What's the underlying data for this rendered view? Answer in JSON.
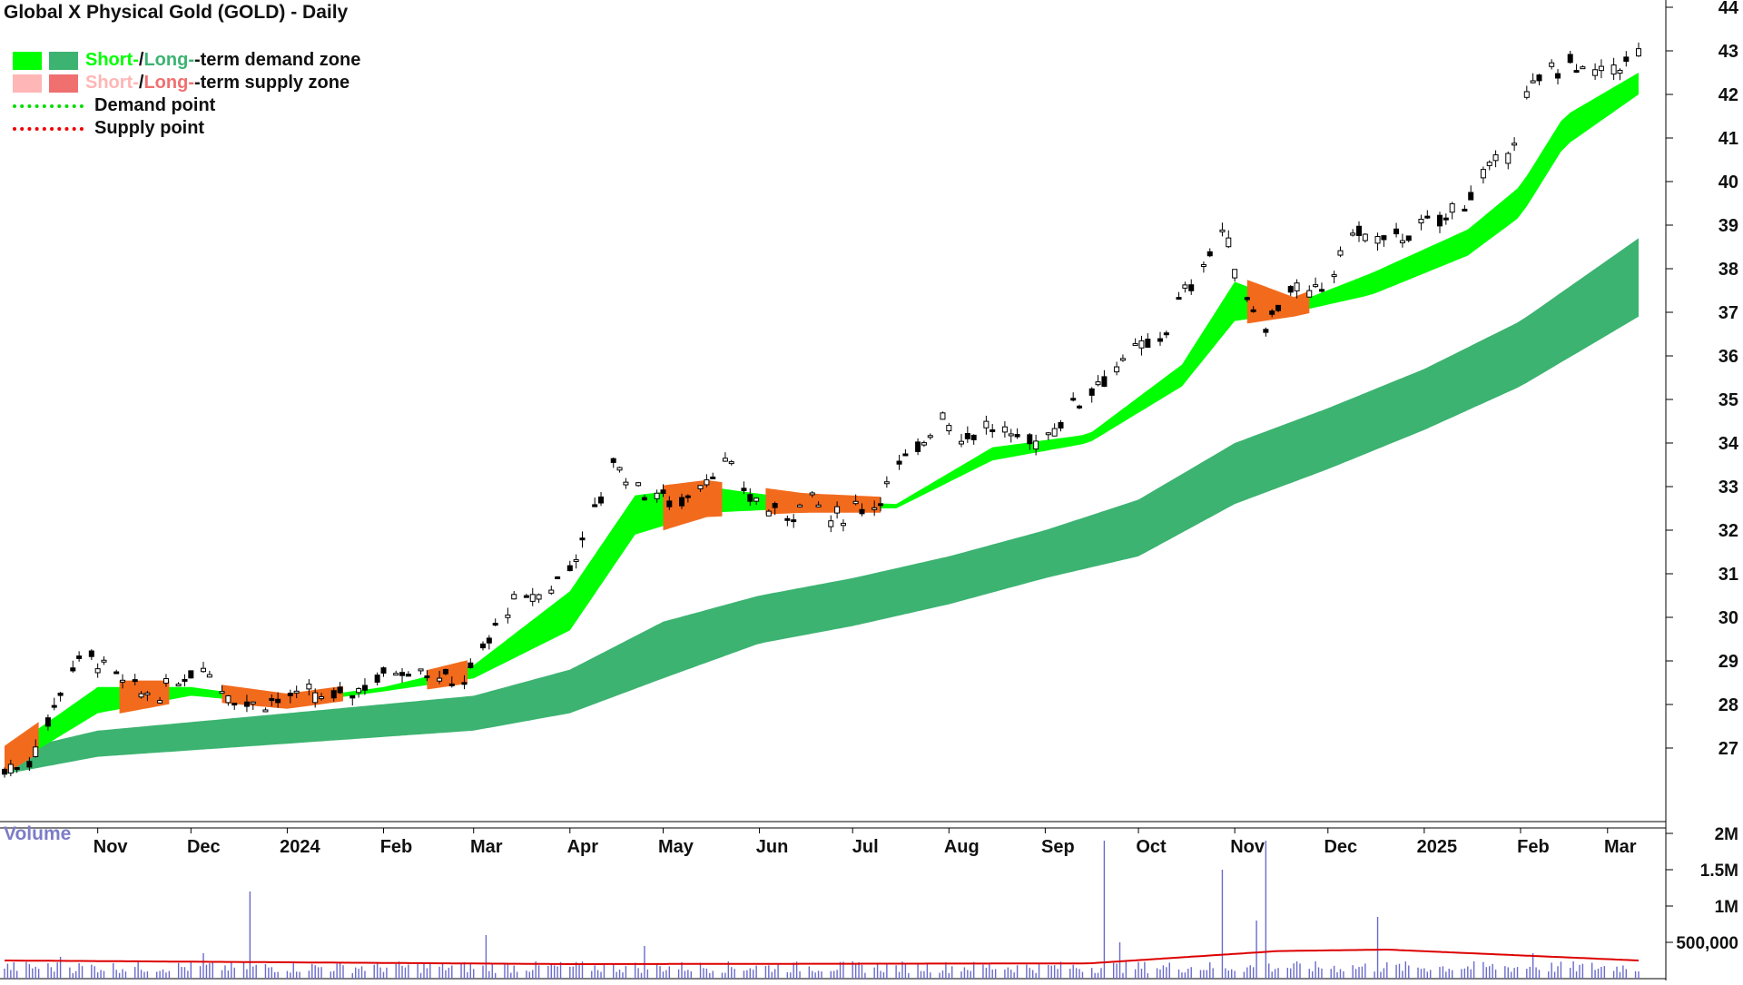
{
  "title": "Global X Physical Gold (GOLD) - Daily",
  "legend": {
    "row1": {
      "short": "Short-",
      "sep": " / ",
      "long": "Long-",
      "rest": "-term demand zone"
    },
    "row2": {
      "short": "Short-",
      "sep": " / ",
      "long": "Long-",
      "rest": "-term supply zone"
    },
    "row3": "Demand point",
    "row4": "Supply point"
  },
  "colors": {
    "short_demand": "#00ff00",
    "long_demand": "#3cb371",
    "short_supply": "#ffb6b6",
    "long_supply": "#f07070",
    "supply_band": "#f26b1d",
    "demand_point": "#00dd00",
    "supply_point": "#ee0000",
    "volume_bar": "#6a6acd",
    "volume_avg": "#dd0000"
  },
  "icons": {
    "legend_swatch": "square-swatch-icon",
    "legend_line": "dotted-line-icon"
  },
  "volume_label": "Volume",
  "chart_data": [
    {
      "type": "candlestick",
      "title": "Global X Physical Gold (GOLD) - Daily",
      "y_axis_side": "right",
      "ylim": [
        26,
        44
      ],
      "y_ticks": [
        27,
        28,
        29,
        30,
        31,
        32,
        33,
        34,
        35,
        36,
        37,
        38,
        39,
        40,
        41,
        42,
        43,
        44
      ],
      "x_tick_labels": [
        "Nov",
        "Dec",
        "2024",
        "Feb",
        "Mar",
        "Apr",
        "May",
        "Jun",
        "Jul",
        "Aug",
        "Sep",
        "Oct",
        "Nov",
        "Dec",
        "2025",
        "Feb",
        "Mar"
      ],
      "x_tick_dates": [
        "2023-11-01",
        "2023-12-01",
        "2024-01-01",
        "2024-02-01",
        "2024-03-01",
        "2024-04-01",
        "2024-05-01",
        "2024-06-01",
        "2024-07-01",
        "2024-08-01",
        "2024-09-01",
        "2024-10-01",
        "2024-11-01",
        "2024-12-01",
        "2025-01-01",
        "2025-02-01",
        "2025-03-01"
      ],
      "date_range": [
        "2023-10-02",
        "2025-03-11"
      ],
      "series": [
        {
          "name": "Price",
          "points": [
            [
              "2023-10-02",
              26.5
            ],
            [
              "2023-10-09",
              26.6
            ],
            [
              "2023-10-16",
              27.6
            ],
            [
              "2023-10-23",
              28.9
            ],
            [
              "2023-10-30",
              29.1
            ],
            [
              "2023-11-06",
              28.7
            ],
            [
              "2023-11-13",
              28.3
            ],
            [
              "2023-11-20",
              28.2
            ],
            [
              "2023-11-27",
              28.5
            ],
            [
              "2023-12-04",
              29.0
            ],
            [
              "2023-12-11",
              28.4
            ],
            [
              "2023-12-18",
              28.0
            ],
            [
              "2023-12-25",
              28.1
            ],
            [
              "2024-01-08",
              28.2
            ],
            [
              "2024-01-15",
              28.1
            ],
            [
              "2024-01-22",
              28.3
            ],
            [
              "2024-01-29",
              28.6
            ],
            [
              "2024-02-05",
              28.8
            ],
            [
              "2024-02-12",
              28.9
            ],
            [
              "2024-02-19",
              28.6
            ],
            [
              "2024-02-26",
              28.5
            ],
            [
              "2024-03-04",
              29.2
            ],
            [
              "2024-03-11",
              30.2
            ],
            [
              "2024-03-18",
              30.4
            ],
            [
              "2024-03-25",
              30.6
            ],
            [
              "2024-04-01",
              31.2
            ],
            [
              "2024-04-08",
              32.2
            ],
            [
              "2024-04-15",
              33.6
            ],
            [
              "2024-04-22",
              33.0
            ],
            [
              "2024-04-29",
              32.8
            ],
            [
              "2024-05-06",
              32.6
            ],
            [
              "2024-05-13",
              33.1
            ],
            [
              "2024-05-20",
              33.6
            ],
            [
              "2024-05-27",
              32.9
            ],
            [
              "2024-06-03",
              32.5
            ],
            [
              "2024-06-10",
              32.3
            ],
            [
              "2024-06-17",
              32.9
            ],
            [
              "2024-06-24",
              32.2
            ],
            [
              "2024-07-01",
              32.5
            ],
            [
              "2024-07-08",
              32.6
            ],
            [
              "2024-07-15",
              33.4
            ],
            [
              "2024-07-22",
              33.8
            ],
            [
              "2024-07-29",
              34.8
            ],
            [
              "2024-08-05",
              34.1
            ],
            [
              "2024-08-12",
              34.4
            ],
            [
              "2024-08-19",
              34.2
            ],
            [
              "2024-08-26",
              34.0
            ],
            [
              "2024-09-02",
              34.2
            ],
            [
              "2024-09-09",
              34.8
            ],
            [
              "2024-09-16",
              35.3
            ],
            [
              "2024-09-23",
              35.7
            ],
            [
              "2024-09-30",
              36.1
            ],
            [
              "2024-10-07",
              36.3
            ],
            [
              "2024-10-14",
              37.2
            ],
            [
              "2024-10-21",
              38.0
            ],
            [
              "2024-10-28",
              38.9
            ],
            [
              "2024-11-04",
              37.4
            ],
            [
              "2024-11-11",
              36.7
            ],
            [
              "2024-11-18",
              37.6
            ],
            [
              "2024-11-25",
              37.3
            ],
            [
              "2024-12-02",
              37.8
            ],
            [
              "2024-12-09",
              38.9
            ],
            [
              "2024-12-16",
              38.6
            ],
            [
              "2024-12-23",
              38.7
            ],
            [
              "2025-01-06",
              39.1
            ],
            [
              "2025-01-13",
              39.5
            ],
            [
              "2025-01-20",
              40.1
            ],
            [
              "2025-01-27",
              40.5
            ],
            [
              "2025-02-03",
              41.9
            ],
            [
              "2025-02-10",
              42.6
            ],
            [
              "2025-02-17",
              42.7
            ],
            [
              "2025-02-24",
              42.4
            ],
            [
              "2025-03-03",
              42.6
            ],
            [
              "2025-03-11",
              42.9
            ]
          ]
        },
        {
          "name": "Short-term zone",
          "upper": [
            [
              "2023-10-02",
              26.9
            ],
            [
              "2023-11-01",
              28.4
            ],
            [
              "2023-12-01",
              28.4
            ],
            [
              "2024-01-01",
              28.1
            ],
            [
              "2024-02-01",
              28.4
            ],
            [
              "2024-03-01",
              28.9
            ],
            [
              "2024-04-01",
              30.6
            ],
            [
              "2024-04-22",
              32.8
            ],
            [
              "2024-05-15",
              33.0
            ],
            [
              "2024-06-15",
              32.7
            ],
            [
              "2024-07-15",
              32.6
            ],
            [
              "2024-08-15",
              33.9
            ],
            [
              "2024-09-15",
              34.2
            ],
            [
              "2024-10-15",
              35.8
            ],
            [
              "2024-11-01",
              37.7
            ],
            [
              "2024-11-20",
              37.2
            ],
            [
              "2024-12-15",
              37.9
            ],
            [
              "2025-01-15",
              38.9
            ],
            [
              "2025-02-01",
              39.9
            ],
            [
              "2025-02-15",
              41.5
            ],
            [
              "2025-03-11",
              42.5
            ]
          ],
          "lower": [
            [
              "2023-10-02",
              26.5
            ],
            [
              "2023-11-01",
              27.8
            ],
            [
              "2023-12-01",
              28.2
            ],
            [
              "2024-01-01",
              28.0
            ],
            [
              "2024-02-01",
              28.3
            ],
            [
              "2024-03-01",
              28.6
            ],
            [
              "2024-04-01",
              29.7
            ],
            [
              "2024-04-22",
              31.9
            ],
            [
              "2024-05-15",
              32.4
            ],
            [
              "2024-06-15",
              32.5
            ],
            [
              "2024-07-15",
              32.5
            ],
            [
              "2024-08-15",
              33.6
            ],
            [
              "2024-09-15",
              34.0
            ],
            [
              "2024-10-15",
              35.3
            ],
            [
              "2024-11-01",
              36.8
            ],
            [
              "2024-11-20",
              37.0
            ],
            [
              "2024-12-15",
              37.4
            ],
            [
              "2025-01-15",
              38.3
            ],
            [
              "2025-02-01",
              39.2
            ],
            [
              "2025-02-15",
              40.8
            ],
            [
              "2025-03-11",
              42.0
            ]
          ],
          "supply_periods": [
            [
              "2023-10-02",
              "2023-10-14"
            ],
            [
              "2023-11-08",
              "2023-11-25"
            ],
            [
              "2023-12-10",
              "2024-01-20"
            ],
            [
              "2024-02-15",
              "2024-02-28"
            ],
            [
              "2024-05-01",
              "2024-05-20"
            ],
            [
              "2024-06-01",
              "2024-07-10"
            ],
            [
              "2024-11-05",
              "2024-11-25"
            ]
          ]
        },
        {
          "name": "Long-term zone",
          "upper": [
            [
              "2023-10-02",
              26.9
            ],
            [
              "2023-11-01",
              27.4
            ],
            [
              "2024-01-01",
              27.8
            ],
            [
              "2024-03-01",
              28.2
            ],
            [
              "2024-04-01",
              28.8
            ],
            [
              "2024-05-01",
              29.9
            ],
            [
              "2024-06-01",
              30.5
            ],
            [
              "2024-07-01",
              30.9
            ],
            [
              "2024-08-01",
              31.4
            ],
            [
              "2024-09-01",
              32.0
            ],
            [
              "2024-10-01",
              32.7
            ],
            [
              "2024-11-01",
              34.0
            ],
            [
              "2024-12-01",
              34.8
            ],
            [
              "2025-01-01",
              35.7
            ],
            [
              "2025-02-01",
              36.8
            ],
            [
              "2025-03-11",
              38.7
            ]
          ],
          "lower": [
            [
              "2023-10-02",
              26.4
            ],
            [
              "2023-11-01",
              26.8
            ],
            [
              "2024-01-01",
              27.1
            ],
            [
              "2024-03-01",
              27.4
            ],
            [
              "2024-04-01",
              27.8
            ],
            [
              "2024-05-01",
              28.6
            ],
            [
              "2024-06-01",
              29.4
            ],
            [
              "2024-07-01",
              29.8
            ],
            [
              "2024-08-01",
              30.3
            ],
            [
              "2024-09-01",
              30.9
            ],
            [
              "2024-10-01",
              31.4
            ],
            [
              "2024-11-01",
              32.6
            ],
            [
              "2024-12-01",
              33.4
            ],
            [
              "2025-01-01",
              34.3
            ],
            [
              "2025-02-01",
              35.3
            ],
            [
              "2025-03-11",
              36.9
            ]
          ]
        }
      ]
    },
    {
      "type": "bar",
      "title": "Volume",
      "ylim": [
        0,
        2000000
      ],
      "y_tick_labels": [
        "2M",
        "1.5M",
        "1M",
        "500,000"
      ],
      "y_tick_values": [
        2000000,
        1500000,
        1000000,
        500000
      ],
      "series": [
        {
          "name": "Volume",
          "spikes": [
            [
              "2023-10-20",
              300000
            ],
            [
              "2023-12-05",
              350000
            ],
            [
              "2023-12-20",
              1200000
            ],
            [
              "2024-03-05",
              600000
            ],
            [
              "2024-04-25",
              450000
            ],
            [
              "2024-05-25",
              500000
            ],
            [
              "2024-08-10",
              350000
            ],
            [
              "2024-09-20",
              1900000
            ],
            [
              "2024-09-25",
              500000
            ],
            [
              "2024-10-20",
              400000
            ],
            [
              "2024-10-28",
              1500000
            ],
            [
              "2024-11-08",
              800000
            ],
            [
              "2024-11-11",
              1900000
            ],
            [
              "2024-12-15",
              850000
            ],
            [
              "2024-12-17",
              850000
            ],
            [
              "2025-02-05",
              350000
            ],
            [
              "2025-03-02",
              400000
            ]
          ],
          "baseline": 150000
        },
        {
          "name": "Volume average",
          "points": [
            [
              "2023-10-02",
              250000
            ],
            [
              "2024-04-01",
              200000
            ],
            [
              "2024-09-15",
              210000
            ],
            [
              "2024-11-15",
              380000
            ],
            [
              "2024-12-20",
              400000
            ],
            [
              "2025-03-11",
              250000
            ]
          ]
        }
      ]
    }
  ]
}
